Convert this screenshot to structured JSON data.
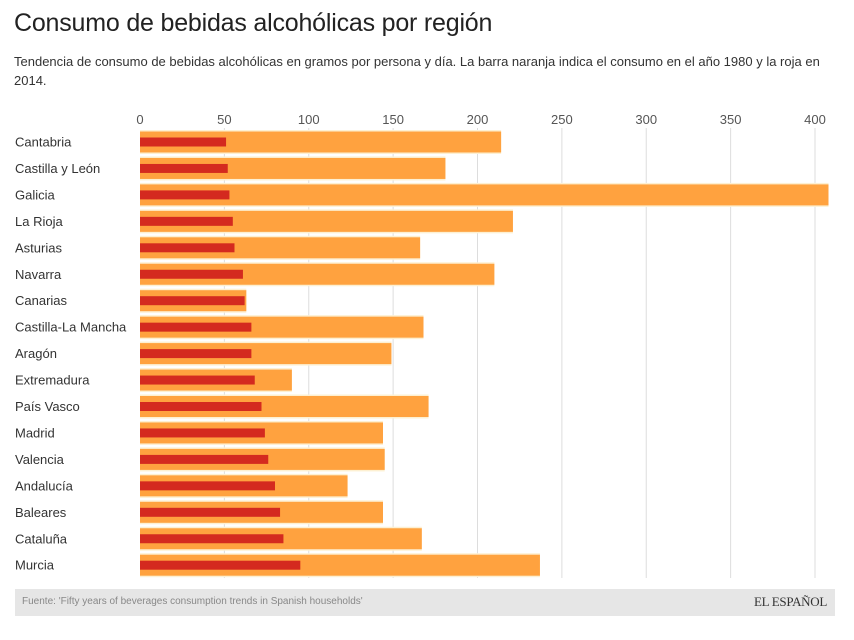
{
  "header": {
    "title": "Consumo de bebidas alcohólicas por región",
    "subtitle": "Tendencia de consumo de bebidas alcohólicas en gramos por persona y día. La barra naranja indica el consumo en el año 1980 y la roja en 2014."
  },
  "footer": {
    "source": "Fuente: 'Fifty years of beverages consumption trends in Spanish households'",
    "logo": "EL ESPAÑOL"
  },
  "colors": {
    "orange": "#ffa23f",
    "red": "#d42a1f",
    "gap": "#fdf0d2",
    "grid": "#dddddd"
  },
  "chart_data": {
    "type": "bar",
    "orientation": "horizontal",
    "title": "Consumo de bebidas alcohólicas por región",
    "xlabel": "",
    "ylabel": "",
    "xlim": [
      0,
      410
    ],
    "xticks": [
      0,
      50,
      100,
      150,
      200,
      250,
      300,
      350,
      400
    ],
    "grid": true,
    "categories": [
      "Cantabria",
      "Castilla y León",
      "Galicia",
      "La Rioja",
      "Asturias",
      "Navarra",
      "Canarias",
      "Castilla-La Mancha",
      "Aragón",
      "Extremadura",
      "País Vasco",
      "Madrid",
      "Valencia",
      "Andalucía",
      "Baleares",
      "Cataluña",
      "Murcia"
    ],
    "series": [
      {
        "name": "1980",
        "color": "#ffa23f",
        "values": [
          214,
          181,
          408,
          221,
          166,
          210,
          63,
          168,
          149,
          90,
          171,
          144,
          145,
          123,
          144,
          167,
          237
        ]
      },
      {
        "name": "2014",
        "color": "#d42a1f",
        "values": [
          51,
          52,
          53,
          55,
          56,
          61,
          62,
          66,
          66,
          68,
          72,
          74,
          76,
          80,
          83,
          85,
          95
        ]
      }
    ]
  }
}
